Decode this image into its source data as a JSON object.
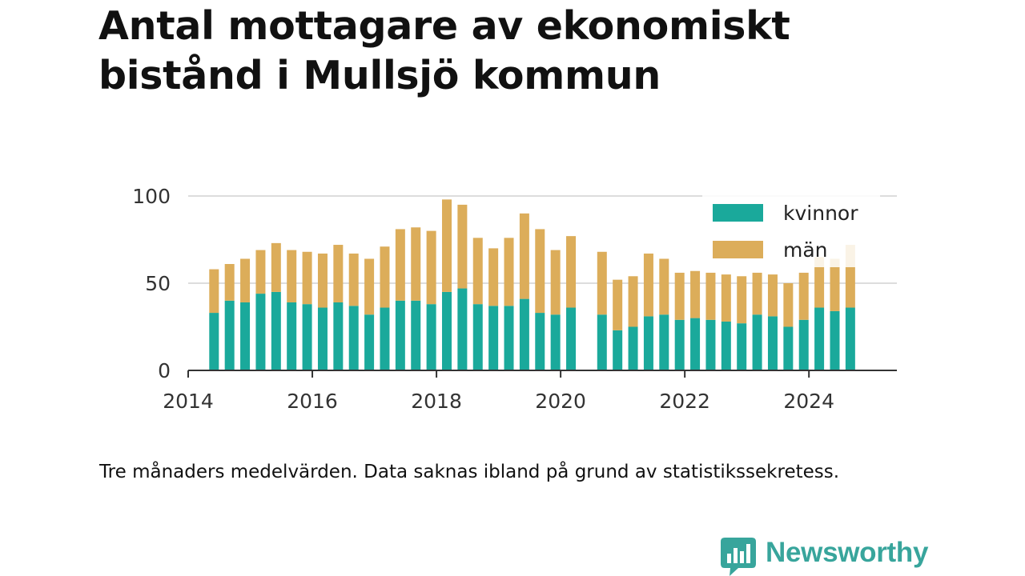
{
  "title": "Antal mottagare av ekonomiskt bistånd i Mullsjö kommun",
  "caption": "Tre månaders medelvärden. Data saknas ibland på grund av statistikssekretess.",
  "brand": {
    "name": "Newsworthy",
    "icon": "chat-bar-chart-icon",
    "color": "#38a59c"
  },
  "chart_data": {
    "type": "bar",
    "stacked": true,
    "title": "Antal mottagare av ekonomiskt bistånd i Mullsjö kommun",
    "xlabel": "",
    "ylabel": "",
    "ylim": [
      0,
      100
    ],
    "yticks": [
      0,
      50,
      100
    ],
    "xlim": [
      "2014-01",
      "2025-06"
    ],
    "xticks": [
      "2014",
      "2016",
      "2018",
      "2020",
      "2022",
      "2024"
    ],
    "grid": true,
    "legend_position": "top-right",
    "x": [
      "2014-06",
      "2014-09",
      "2014-12",
      "2015-03",
      "2015-06",
      "2015-09",
      "2015-12",
      "2016-03",
      "2016-06",
      "2016-09",
      "2016-12",
      "2017-03",
      "2017-06",
      "2017-09",
      "2017-12",
      "2018-03",
      "2018-06",
      "2018-09",
      "2018-12",
      "2019-03",
      "2019-06",
      "2019-09",
      "2019-12",
      "2020-03",
      "2020-09",
      "2020-12",
      "2021-03",
      "2021-06",
      "2021-09",
      "2021-12",
      "2022-03",
      "2022-06",
      "2022-09",
      "2022-12",
      "2023-03",
      "2023-06",
      "2023-09",
      "2023-12",
      "2024-03",
      "2024-06",
      "2024-09"
    ],
    "series": [
      {
        "name": "kvinnor",
        "color": "#1aa99b",
        "values": [
          33,
          40,
          39,
          44,
          45,
          39,
          38,
          36,
          39,
          37,
          32,
          36,
          40,
          40,
          38,
          45,
          47,
          38,
          37,
          37,
          41,
          33,
          32,
          36,
          32,
          23,
          25,
          31,
          32,
          29,
          30,
          29,
          28,
          27,
          32,
          31,
          25,
          29,
          36,
          34,
          36
        ]
      },
      {
        "name": "män",
        "color": "#dcad5a",
        "values": [
          25,
          21,
          25,
          25,
          28,
          30,
          30,
          31,
          33,
          30,
          32,
          35,
          41,
          42,
          42,
          53,
          48,
          38,
          33,
          39,
          49,
          48,
          37,
          41,
          36,
          29,
          29,
          36,
          32,
          27,
          27,
          27,
          27,
          27,
          24,
          24,
          25,
          27,
          29,
          30,
          36
        ]
      }
    ]
  }
}
